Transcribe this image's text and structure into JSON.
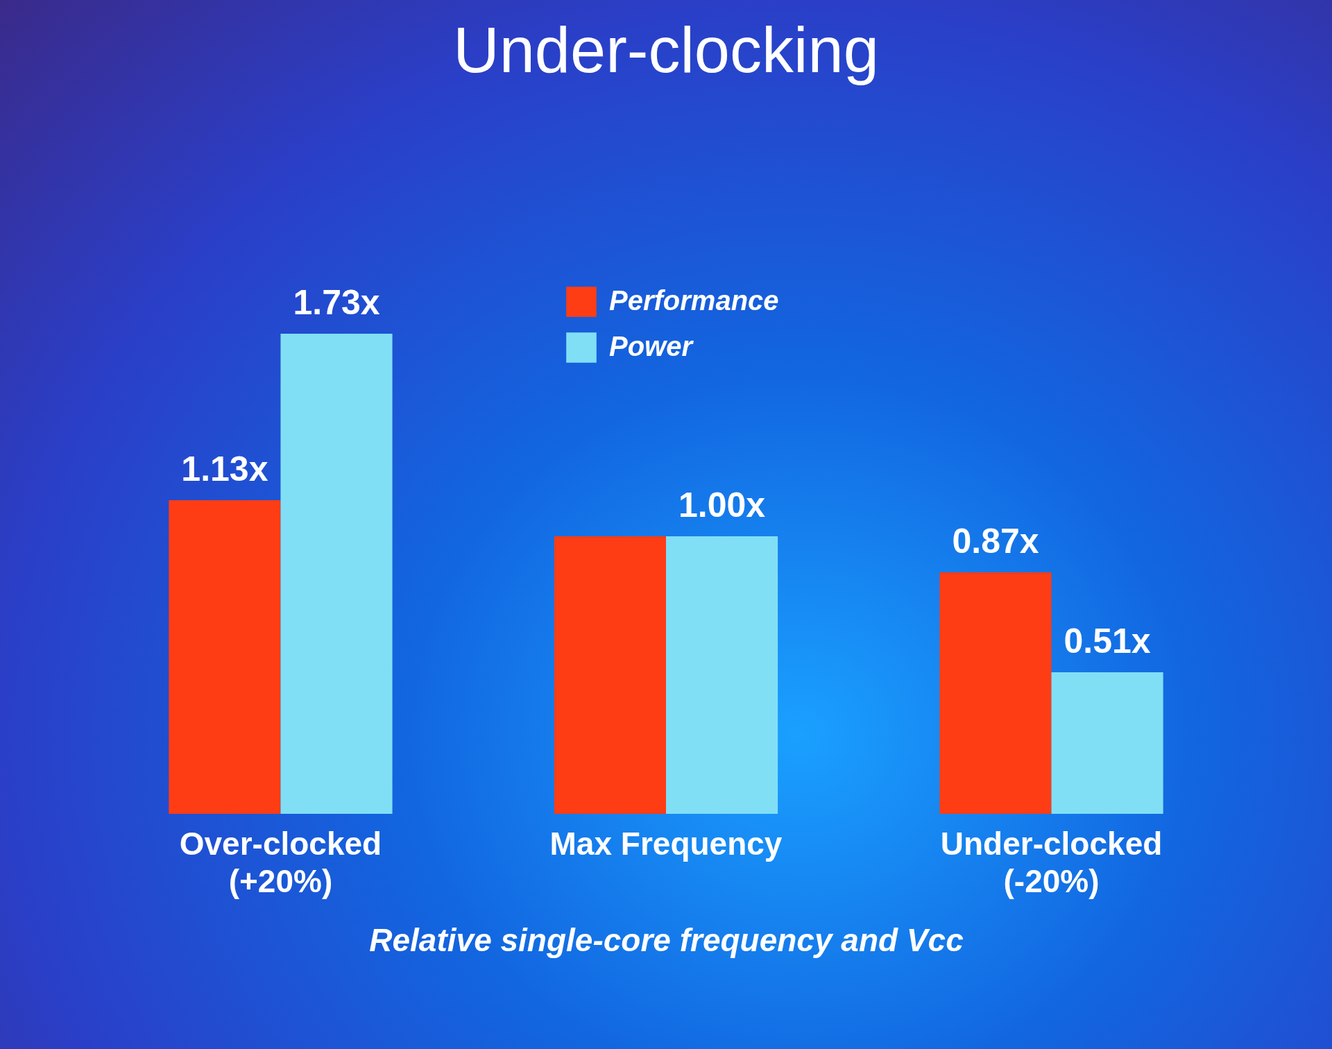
{
  "chart_data": {
    "type": "bar",
    "title": "Under-clocking",
    "xlabel": "Relative single-core frequency and Vcc",
    "categories": [
      "Over-clocked (+20%)",
      "Max Frequency",
      "Under-clocked (-20%)"
    ],
    "series": [
      {
        "name": "Performance",
        "color": "#ff3d14",
        "values": [
          1.13,
          1.0,
          0.87
        ],
        "value_labels": [
          "1.13x",
          null,
          "0.87x"
        ]
      },
      {
        "name": "Power",
        "color": "#80dff5",
        "values": [
          1.73,
          1.0,
          0.51
        ],
        "value_labels": [
          "1.73x",
          "1.00x",
          "0.51x"
        ]
      }
    ],
    "legend": "top",
    "tick_labels": "x",
    "grid": false
  }
}
